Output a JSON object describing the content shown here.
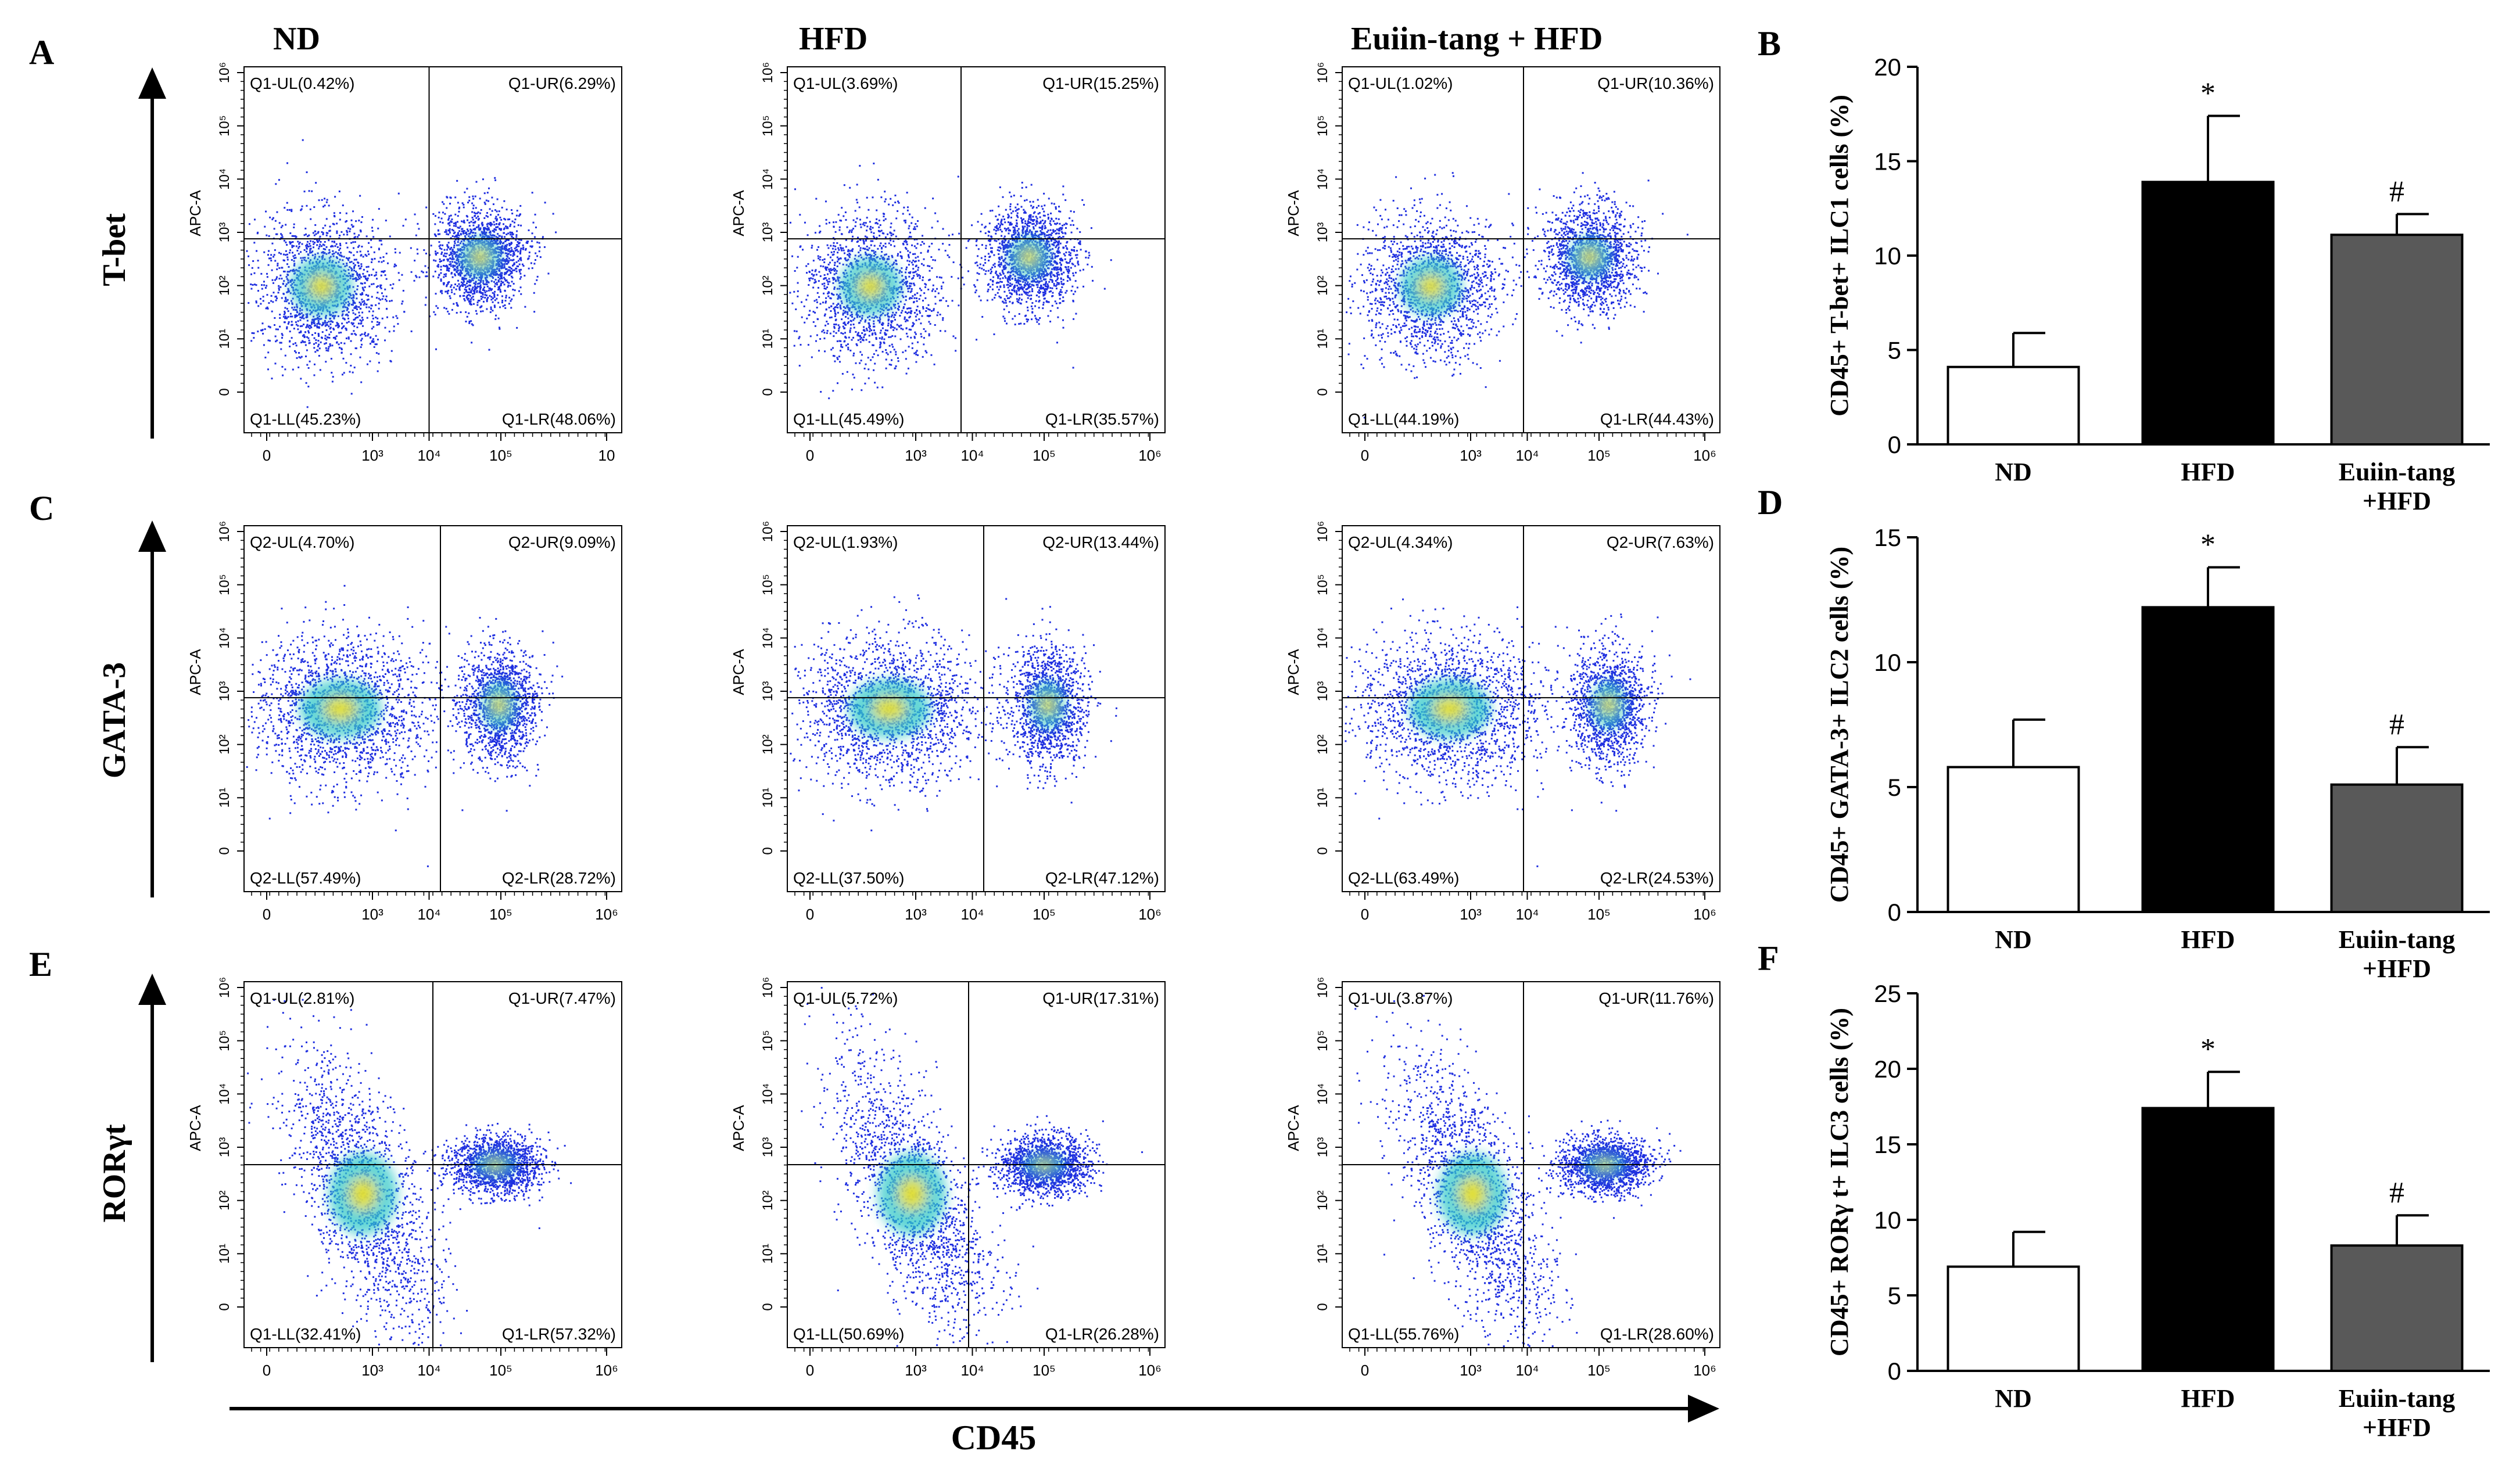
{
  "panel_letters": [
    "A",
    "B",
    "C",
    "D",
    "E",
    "F"
  ],
  "column_titles": [
    "ND",
    "HFD",
    "Euiin-tang + HFD"
  ],
  "row_labels": [
    "T-bet",
    "GATA-3",
    "RORγt"
  ],
  "x_axis_title": "CD45",
  "flow_y_label": "APC-A",
  "flow_y_ticks": [
    "0",
    "10¹",
    "10²",
    "10³",
    "10⁴",
    "10⁵",
    "10⁶"
  ],
  "flow_x_ticks": [
    "0",
    "10³",
    "10⁴",
    "10⁵",
    "10⁶"
  ],
  "flow_x_ticks_row1_col1": [
    "0",
    "10³",
    "10⁴",
    "10⁵",
    "10"
  ],
  "quadrants": [
    [
      {
        "ul": "Q1-UL(0.42%)",
        "ur": "Q1-UR(6.29%)",
        "ll": "Q1-LL(45.23%)",
        "lr": "Q1-LR(48.06%)"
      },
      {
        "ul": "Q1-UL(3.69%)",
        "ur": "Q1-UR(15.25%)",
        "ll": "Q1-LL(45.49%)",
        "lr": "Q1-LR(35.57%)"
      },
      {
        "ul": "Q1-UL(1.02%)",
        "ur": "Q1-UR(10.36%)",
        "ll": "Q1-LL(44.19%)",
        "lr": "Q1-LR(44.43%)"
      }
    ],
    [
      {
        "ul": "Q2-UL(4.70%)",
        "ur": "Q2-UR(9.09%)",
        "ll": "Q2-LL(57.49%)",
        "lr": "Q2-LR(28.72%)"
      },
      {
        "ul": "Q2-UL(1.93%)",
        "ur": "Q2-UR(13.44%)",
        "ll": "Q2-LL(37.50%)",
        "lr": "Q2-LR(47.12%)"
      },
      {
        "ul": "Q2-UL(4.34%)",
        "ur": "Q2-UR(7.63%)",
        "ll": "Q2-LL(63.49%)",
        "lr": "Q2-LR(24.53%)"
      }
    ],
    [
      {
        "ul": "Q1-UL(2.81%)",
        "ur": "Q1-UR(7.47%)",
        "ll": "Q1-LL(32.41%)",
        "lr": "Q1-LR(57.32%)"
      },
      {
        "ul": "Q1-UL(5.72%)",
        "ur": "Q1-UR(17.31%)",
        "ll": "Q1-LL(50.69%)",
        "lr": "Q1-LR(26.28%)"
      },
      {
        "ul": "Q1-UL(3.87%)",
        "ur": "Q1-UR(11.76%)",
        "ll": "Q1-LL(55.76%)",
        "lr": "Q1-LR(28.60%)"
      }
    ]
  ],
  "colors": {
    "dots": "#1f2fe0",
    "dense": "#2ec8c8",
    "core": "#f0e020",
    "bar_nd": "#ffffff",
    "bar_hfd": "#000000",
    "bar_euiin": "#595959"
  },
  "chart_data": [
    {
      "type": "bar",
      "panel": "B",
      "categories": [
        "ND",
        "HFD",
        "Euiin-tang\n+HFD"
      ],
      "values": [
        4.1,
        13.9,
        11.1
      ],
      "errors": [
        1.8,
        3.5,
        1.1
      ],
      "significance": [
        "",
        "*",
        "#"
      ],
      "ylabel": "CD45+ T-bet+ ILC1 cells (%)",
      "ylim": [
        0,
        20
      ],
      "yticks": [
        0,
        5,
        10,
        15,
        20
      ]
    },
    {
      "type": "bar",
      "panel": "D",
      "categories": [
        "ND",
        "HFD",
        "Euiin-tang\n+HFD"
      ],
      "values": [
        5.8,
        12.2,
        5.1
      ],
      "errors": [
        1.9,
        1.6,
        1.5
      ],
      "significance": [
        "",
        "*",
        "#"
      ],
      "ylabel": "CD45+ GATA-3+ ILC2 cells (%)",
      "ylim": [
        0,
        15
      ],
      "yticks": [
        0,
        5,
        10,
        15
      ]
    },
    {
      "type": "bar",
      "panel": "F",
      "categories": [
        "ND",
        "HFD",
        "Euiin-tang\n+HFD"
      ],
      "values": [
        6.9,
        17.4,
        8.3
      ],
      "errors": [
        2.3,
        2.4,
        2.0
      ],
      "significance": [
        "",
        "*",
        "#"
      ],
      "ylabel": "CD45+ RORγ t+ ILC3 cells (%)",
      "ylim": [
        0,
        25
      ],
      "yticks": [
        0,
        5,
        10,
        15,
        20,
        25
      ]
    }
  ]
}
